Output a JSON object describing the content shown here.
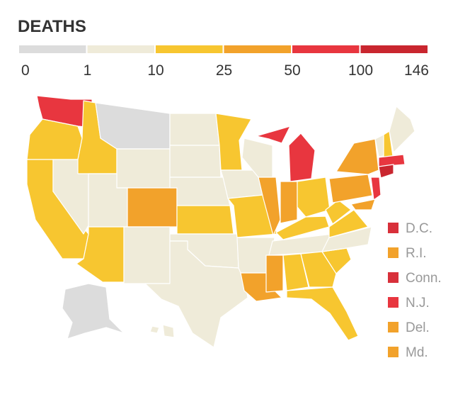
{
  "title": "DEATHS",
  "legend": {
    "breaks": [
      0,
      1,
      10,
      25,
      50,
      100,
      146
    ],
    "colors": [
      "#dcdcdc",
      "#efebd9",
      "#f7c630",
      "#f2a22b",
      "#e8363f",
      "#c9262f"
    ]
  },
  "small_states": [
    {
      "label": "D.C.",
      "color": "#d8303a"
    },
    {
      "label": "R.I.",
      "color": "#f2a22b"
    },
    {
      "label": "Conn.",
      "color": "#d8303a"
    },
    {
      "label": "N.J.",
      "color": "#e8363f"
    },
    {
      "label": "Del.",
      "color": "#f2a22b"
    },
    {
      "label": "Md.",
      "color": "#f2a22b"
    }
  ]
}
